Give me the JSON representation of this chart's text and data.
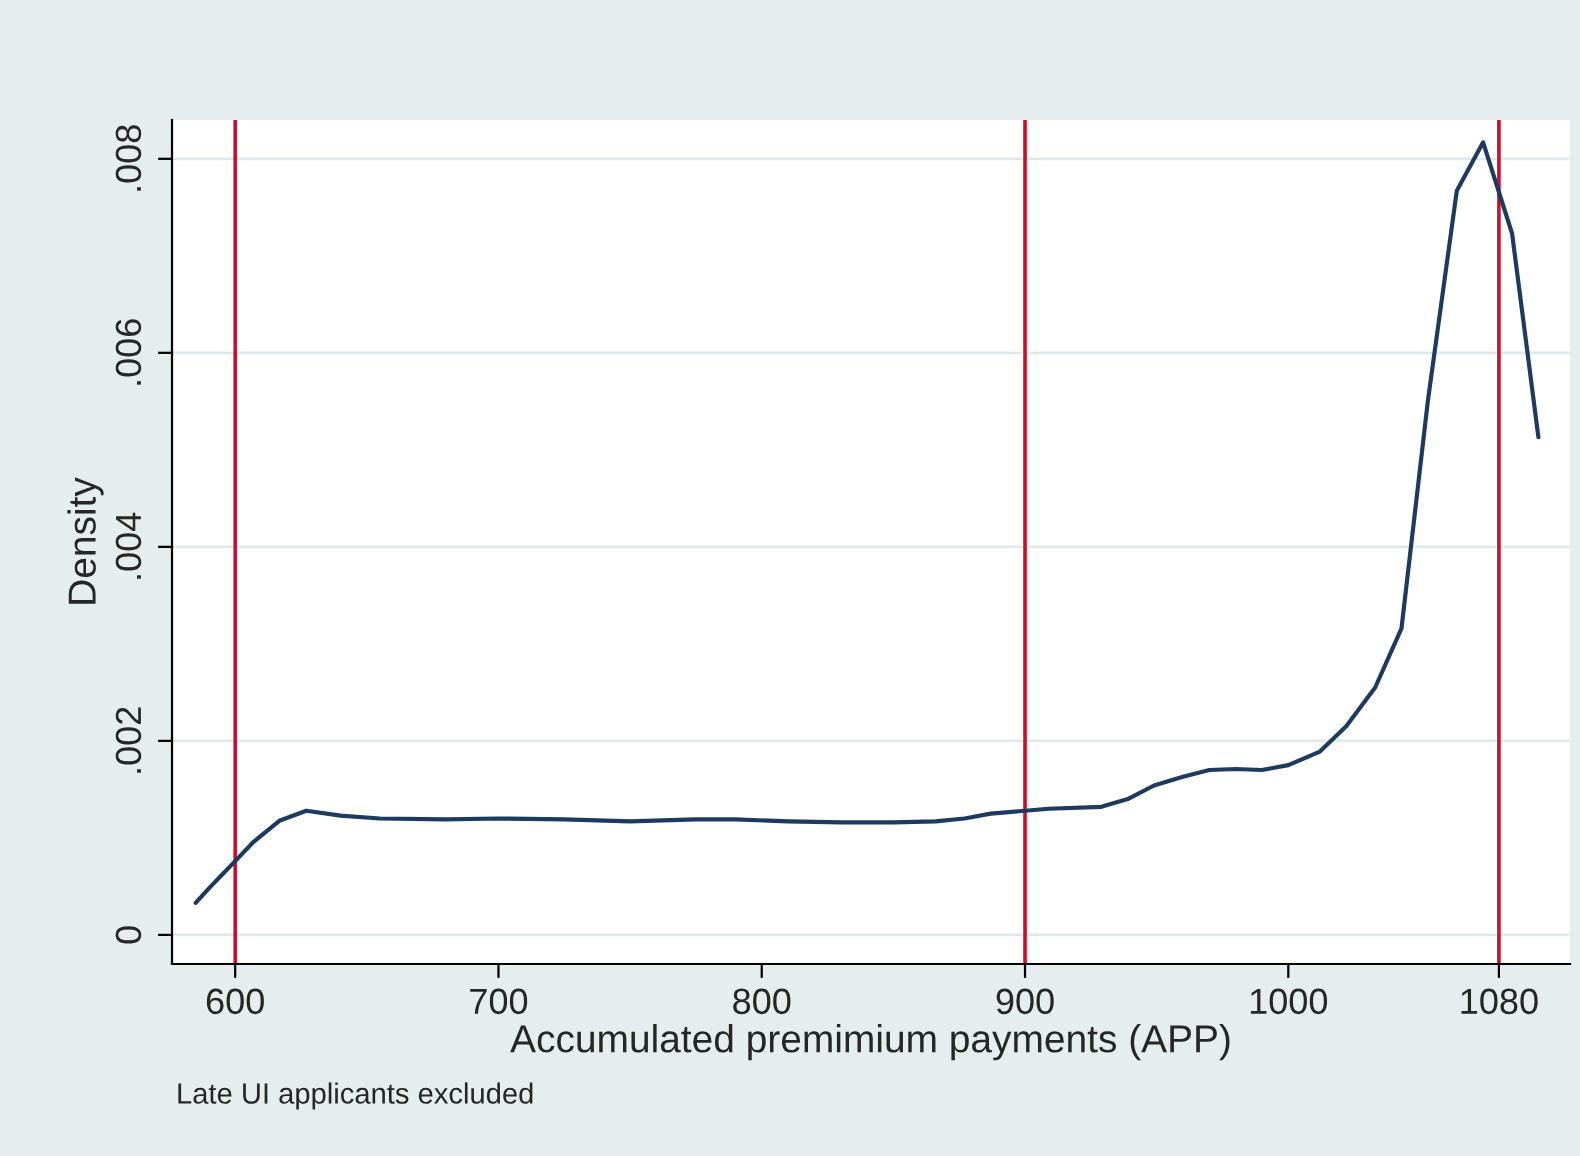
{
  "chart_data": {
    "type": "line",
    "xlabel": "Accumulated premimium payments (APP)",
    "ylabel": "Density",
    "x": [
      585,
      590,
      595,
      600,
      607,
      617,
      627,
      640,
      655,
      680,
      700,
      725,
      750,
      775,
      790,
      810,
      830,
      850,
      866,
      877,
      887,
      900,
      909,
      929,
      939,
      949,
      960,
      970,
      980,
      990,
      1000,
      1012,
      1022,
      1033,
      1043,
      1053,
      1064,
      1074,
      1085,
      1095
    ],
    "series": [
      {
        "color": "#1f3a5f",
        "values": [
          0.00033,
          0.00048,
          0.00062,
          0.00076,
          0.00096,
          0.00118,
          0.00128,
          0.00123,
          0.0012,
          0.00119,
          0.0012,
          0.00119,
          0.00117,
          0.00119,
          0.00119,
          0.00117,
          0.00116,
          0.00116,
          0.00117,
          0.0012,
          0.00125,
          0.00128,
          0.0013,
          0.00132,
          0.0014,
          0.00154,
          0.00163,
          0.0017,
          0.00171,
          0.0017,
          0.00175,
          0.00189,
          0.00215,
          0.00255,
          0.00316,
          0.0055,
          0.00767,
          0.00817,
          0.00723,
          0.00513
        ]
      }
    ],
    "xlim": [
      576,
      1107
    ],
    "ylim": [
      -0.0003,
      0.0084
    ],
    "xticks": [
      600,
      700,
      800,
      900,
      1000,
      1080
    ],
    "yticks": [
      {
        "value": 0,
        "label": "0"
      },
      {
        "value": 0.002,
        "label": ".002"
      },
      {
        "value": 0.004,
        "label": ".004"
      },
      {
        "value": 0.006,
        "label": ".006"
      },
      {
        "value": 0.008,
        "label": ".008"
      }
    ],
    "grid": "y",
    "ref_lines": [
      {
        "axis": "x",
        "value": 600,
        "color": "#c8102e"
      },
      {
        "axis": "x",
        "value": 900,
        "color": "#c8102e"
      },
      {
        "axis": "x",
        "value": 1080,
        "color": "#c8102e"
      }
    ],
    "annotations": [
      "Late UI applicants excluded"
    ]
  }
}
